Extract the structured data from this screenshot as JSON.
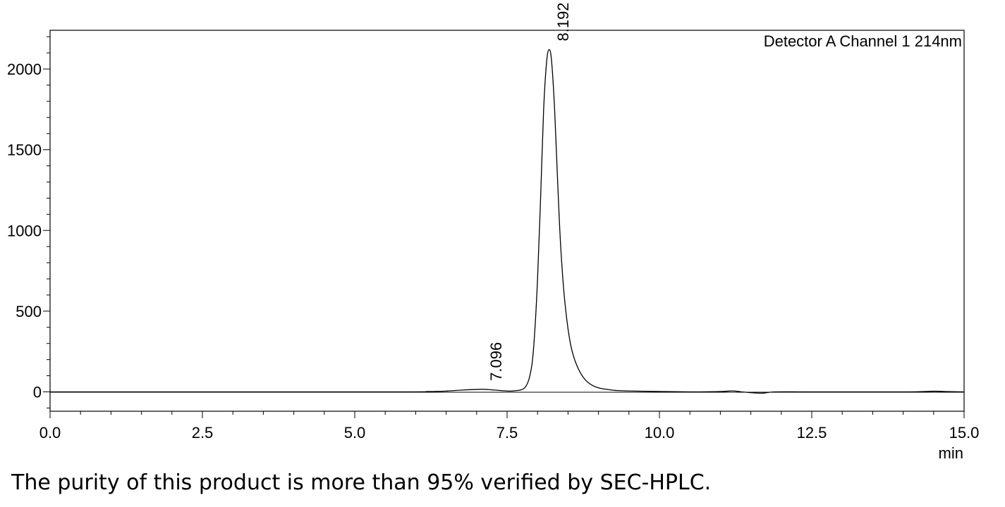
{
  "chart_data": {
    "type": "line",
    "channel_label": "Detector A Channel 1 214nm",
    "x_unit_label": "min",
    "xlim": [
      0.0,
      15.0
    ],
    "ylim": [
      -120,
      2240
    ],
    "x_ticks": [
      "0.0",
      "2.5",
      "5.0",
      "7.5",
      "10.0",
      "12.5",
      "15.0"
    ],
    "y_ticks": [
      "0",
      "500",
      "1000",
      "1500",
      "2000"
    ],
    "x_tick_values": [
      0,
      2.5,
      5,
      7.5,
      10,
      12.5,
      15
    ],
    "y_tick_values": [
      0,
      500,
      1000,
      1500,
      2000
    ],
    "grid": false,
    "baseline": 0,
    "series": [
      {
        "x": [
          0.0,
          5.5,
          6.2,
          6.5,
          6.8,
          7.0,
          7.096,
          7.2,
          7.4,
          7.6,
          7.8,
          7.9,
          7.95,
          8.0,
          8.05,
          8.1,
          8.15,
          8.192,
          8.23,
          8.28,
          8.33,
          8.38,
          8.45,
          8.55,
          8.7,
          8.9,
          9.2,
          9.6,
          10.5,
          11.0,
          11.2,
          11.35,
          11.5,
          11.7,
          11.9,
          12.5,
          14.0,
          14.5,
          14.7,
          15.0
        ],
        "y": [
          0,
          0,
          2,
          5,
          12,
          15,
          16,
          14,
          8,
          6,
          30,
          150,
          350,
          700,
          1200,
          1750,
          2050,
          2120,
          2050,
          1750,
          1300,
          900,
          550,
          280,
          120,
          40,
          12,
          5,
          0,
          2,
          6,
          0,
          -5,
          -8,
          0,
          0,
          0,
          4,
          2,
          0
        ]
      }
    ],
    "peaks": [
      {
        "retention_time": 7.096,
        "label": "7.096",
        "height": 16
      },
      {
        "retention_time": 8.192,
        "label": "8.192",
        "height": 2120
      }
    ]
  },
  "caption": "The purity of this product is more than 95% verified by SEC-HPLC."
}
